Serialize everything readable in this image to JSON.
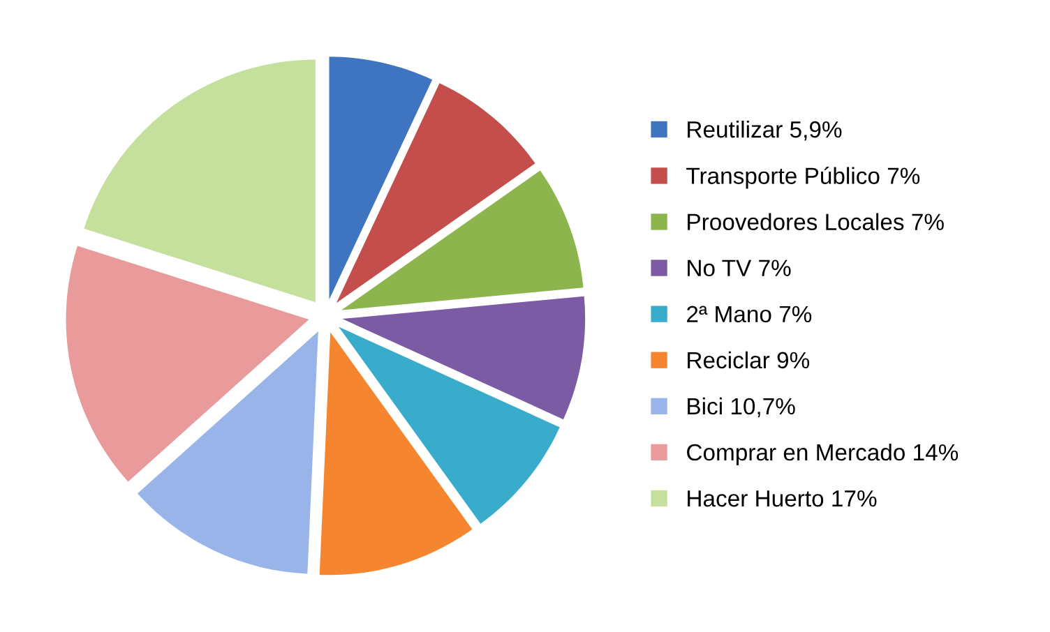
{
  "chart_data": {
    "type": "pie",
    "categories": [
      "Reutilizar",
      "Transporte Público",
      "Proovedores Locales",
      "No TV",
      "2ª Mano",
      "Reciclar",
      "Bici",
      "Comprar en Mercado",
      "Hacer Huerto"
    ],
    "values": [
      5.9,
      7,
      7,
      7,
      7,
      9,
      10.7,
      14,
      17
    ],
    "value_labels": [
      "5,9%",
      "7%",
      "7%",
      "7%",
      "7%",
      "9%",
      "10,7%",
      "14%",
      "17%"
    ],
    "colors": [
      "#3f74c0",
      "#c44e4b",
      "#8db54e",
      "#7b5ba3",
      "#3aaccb",
      "#f5862f",
      "#98b4e8",
      "#e99a9b",
      "#c5df9c"
    ],
    "legend": "right"
  }
}
